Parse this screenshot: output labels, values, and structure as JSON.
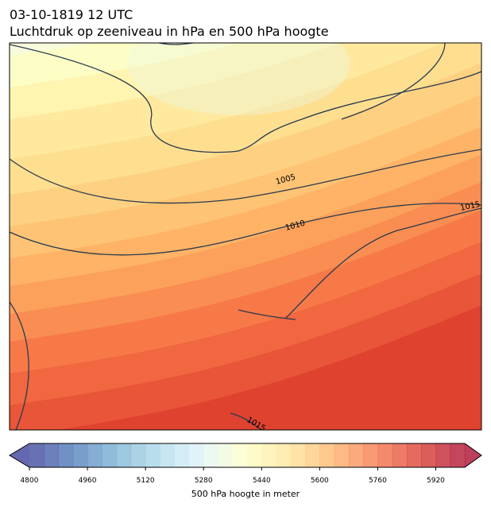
{
  "title": "03-10-1819 12 UTC",
  "subtitle": "Luchtdruk op zeeniveau in hPa en 500 hPa hoogte",
  "map": {
    "contour_labels": [
      1005,
      1010,
      1015,
      1015
    ]
  },
  "colorbar": {
    "label": "500 hPa hoogte in meter",
    "lim": [
      4800,
      6000
    ],
    "step": 40,
    "cmap": "RdYlBu_r",
    "ticks": [
      4800,
      4960,
      5120,
      5280,
      5440,
      5600,
      5760,
      5920
    ]
  }
}
